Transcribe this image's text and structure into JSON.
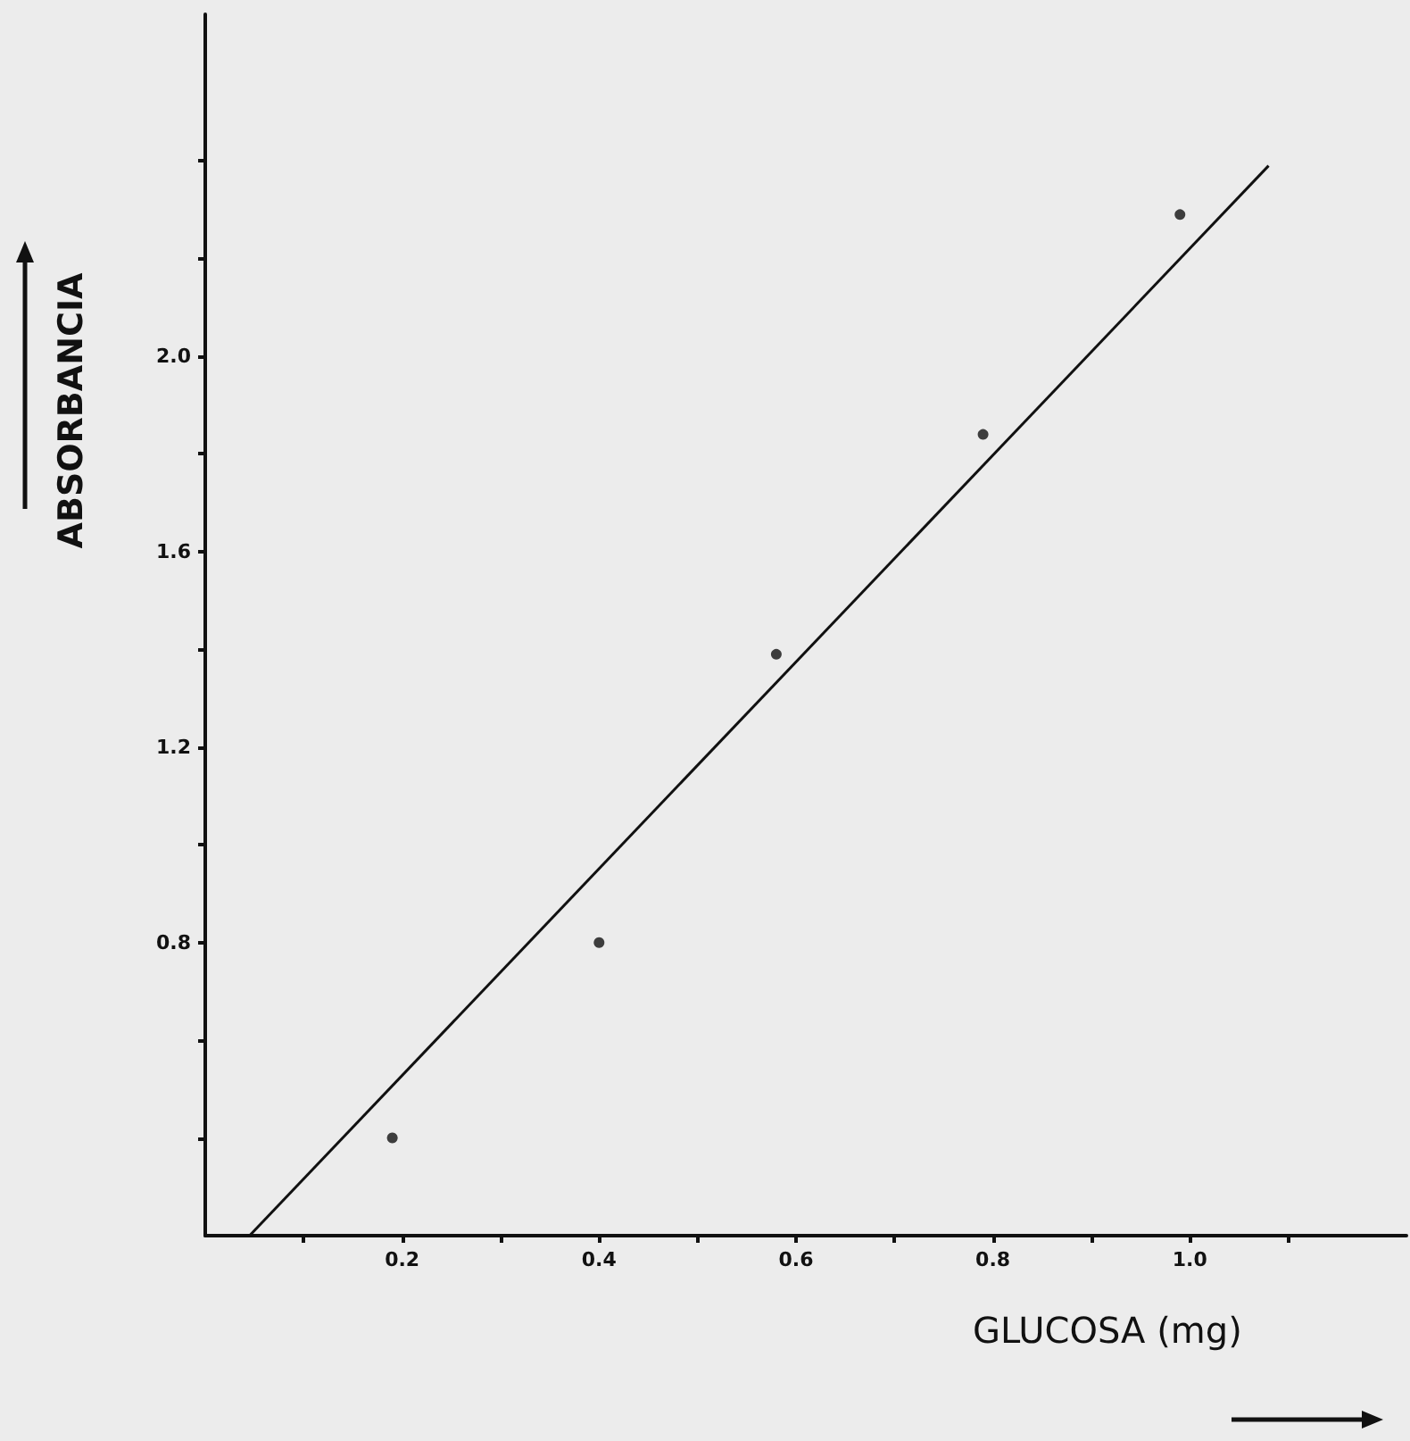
{
  "chart_data": {
    "type": "scatter",
    "xlabel": "GLUCOSA (mg)",
    "ylabel": "ABSORBANCIA",
    "x": [
      0.19,
      0.4,
      0.58,
      0.79,
      0.99
    ],
    "series": [
      {
        "color": "#111111",
        "marker": "circle",
        "values": [
          0.4,
          0.8,
          1.39,
          1.84,
          2.29
        ]
      },
      {
        "type": "line",
        "color": "#111111",
        "x": [
          0.045,
          1.08
        ],
        "values": [
          0.2,
          2.39
        ]
      }
    ],
    "xlim": [
      0,
      1.22
    ],
    "ylim": [
      0.2,
      2.7
    ],
    "xticks": [
      {
        "value": 0.1,
        "label": null
      },
      0.2,
      {
        "value": 0.3,
        "label": null
      },
      0.4,
      {
        "value": 0.5,
        "label": null
      },
      0.6,
      {
        "value": 0.7,
        "label": null
      },
      0.8,
      {
        "value": 0.9,
        "label": null
      },
      {
        "value": 1.0,
        "label": "1.0"
      },
      {
        "value": 1.1,
        "label": null
      }
    ],
    "yticks": [
      {
        "value": 0.4,
        "label": null
      },
      {
        "value": 0.6,
        "label": null
      },
      0.8,
      {
        "value": 1.0,
        "label": null
      },
      1.2,
      {
        "value": 1.4,
        "label": null
      },
      1.6,
      {
        "value": 1.8,
        "label": null
      },
      {
        "value": 2.0,
        "label": "2.0"
      },
      {
        "value": 2.2,
        "label": null
      },
      {
        "value": 2.4,
        "label": null
      }
    ],
    "grid": false
  }
}
